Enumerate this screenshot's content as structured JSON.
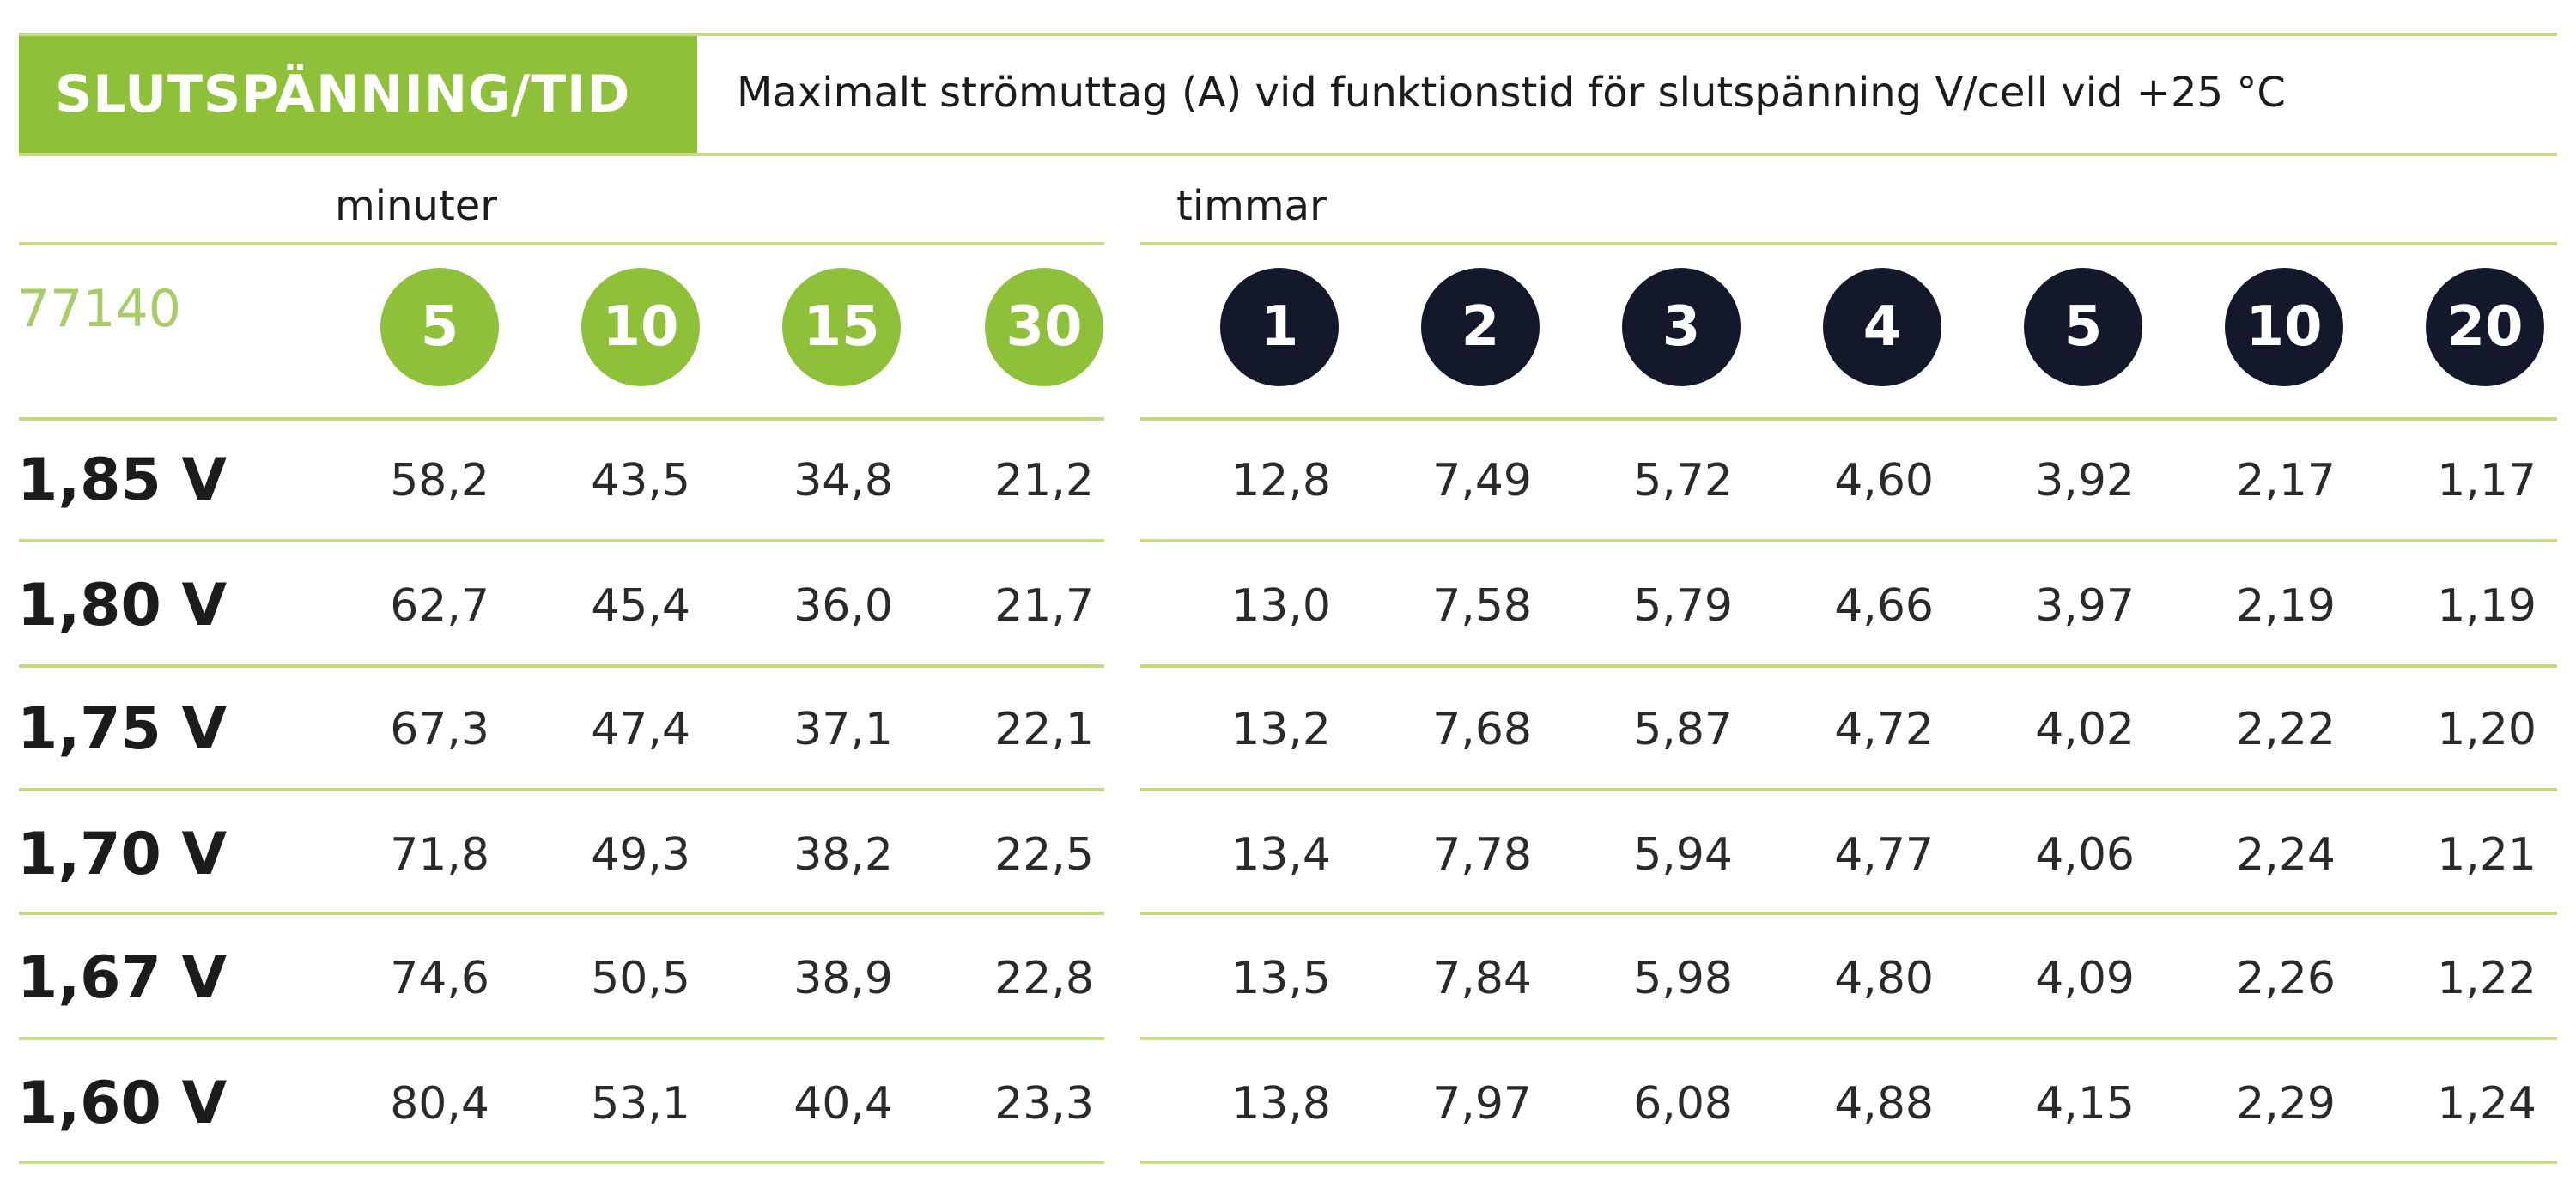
{
  "header": {
    "title": "SLUTSPÄNNING/TID",
    "subtitle": "Maximalt strömuttag (A) vid funktionstid för slutspänning V/cell vid +25 °C"
  },
  "groups": {
    "minutes_label": "minuter",
    "hours_label": "timmar"
  },
  "model": "77140",
  "minute_columns": [
    "5",
    "10",
    "15",
    "30"
  ],
  "hour_columns": [
    "1",
    "2",
    "3",
    "4",
    "5",
    "10",
    "20"
  ],
  "rows": [
    {
      "label": "1,85 V",
      "values": [
        "58,2",
        "43,5",
        "34,8",
        "21,2",
        "12,8",
        "7,49",
        "5,72",
        "4,60",
        "3,92",
        "2,17",
        "1,17"
      ]
    },
    {
      "label": "1,80 V",
      "values": [
        "62,7",
        "45,4",
        "36,0",
        "21,7",
        "13,0",
        "7,58",
        "5,79",
        "4,66",
        "3,97",
        "2,19",
        "1,19"
      ]
    },
    {
      "label": "1,75 V",
      "values": [
        "67,3",
        "47,4",
        "37,1",
        "22,1",
        "13,2",
        "7,68",
        "5,87",
        "4,72",
        "4,02",
        "2,22",
        "1,20"
      ]
    },
    {
      "label": "1,70 V",
      "values": [
        "71,8",
        "49,3",
        "38,2",
        "22,5",
        "13,4",
        "7,78",
        "5,94",
        "4,77",
        "4,06",
        "2,24",
        "1,21"
      ]
    },
    {
      "label": "1,67 V",
      "values": [
        "74,6",
        "50,5",
        "38,9",
        "22,8",
        "13,5",
        "7,84",
        "5,98",
        "4,80",
        "4,09",
        "2,26",
        "1,22"
      ]
    },
    {
      "label": "1,60 V",
      "values": [
        "80,4",
        "53,1",
        "40,4",
        "23,3",
        "13,8",
        "7,97",
        "6,08",
        "4,88",
        "4,15",
        "2,29",
        "1,24"
      ]
    }
  ],
  "colors": {
    "accent_green": "#8fc03a",
    "rule_green": "#c4dc8a",
    "navy": "#13192b",
    "model_green": "#a8cc6a"
  }
}
